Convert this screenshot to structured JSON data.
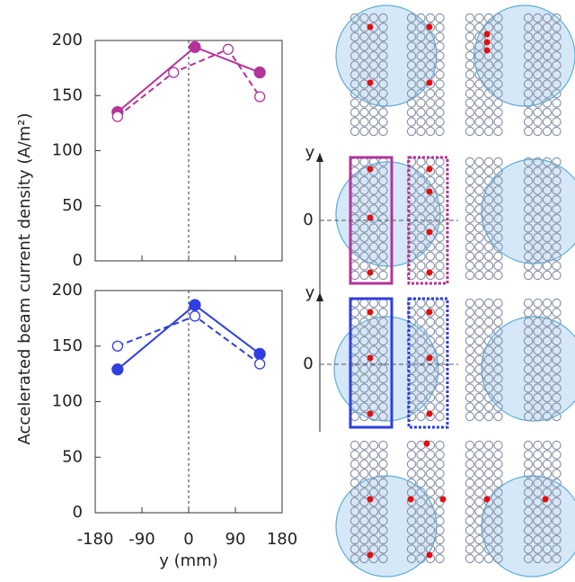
{
  "chart_data": [
    {
      "type": "line",
      "ylabel": "Accelerated beam current density (A/m²)",
      "xlim": [
        -180,
        180
      ],
      "xticks": [
        -180,
        -90,
        0,
        90,
        180
      ],
      "ylim": [
        0,
        200
      ],
      "yticks": [
        0,
        50,
        100,
        150,
        200
      ],
      "series": [
        {
          "color": "#b5339a",
          "linestyle": "solid",
          "marker": "filled",
          "x": [
            -137,
            12,
            137
          ],
          "values": [
            135,
            194,
            171
          ]
        },
        {
          "color": "#b5339a",
          "linestyle": "dashed",
          "marker": "open",
          "x": [
            -137,
            -29,
            76,
            137
          ],
          "values": [
            131,
            171,
            192,
            149
          ]
        }
      ]
    },
    {
      "type": "line",
      "xlabel": "y (mm)",
      "xlim": [
        -180,
        180
      ],
      "xticks": [
        -180,
        -90,
        0,
        90,
        180
      ],
      "ylim": [
        0,
        200
      ],
      "yticks": [
        0,
        50,
        100,
        150,
        200
      ],
      "series": [
        {
          "color": "#2f3fe0",
          "linestyle": "solid",
          "marker": "filled",
          "x": [
            -137,
            12,
            137
          ],
          "values": [
            129,
            187,
            143
          ]
        },
        {
          "color": "#2f3fe0",
          "linestyle": "dashed",
          "marker": "open",
          "x": [
            -137,
            12,
            137
          ],
          "values": [
            150,
            177,
            134
          ]
        }
      ]
    }
  ],
  "diagram": {
    "axes": [
      {
        "label": "y",
        "origin": "0"
      },
      {
        "label": "y",
        "origin": "0"
      }
    ]
  }
}
